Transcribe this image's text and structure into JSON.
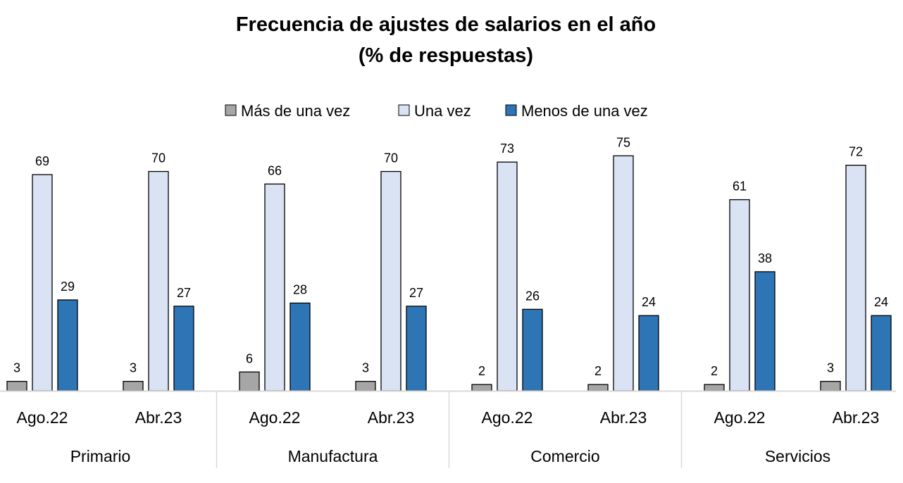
{
  "chart_data": {
    "type": "bar",
    "title": "Frecuencia de ajustes de salarios en el año",
    "subtitle": "(% de respuestas)",
    "groups": [
      "Primario",
      "Manufactura",
      "Comercio",
      "Servicios"
    ],
    "categories": [
      "Ago.22",
      "Abr.23",
      "Ago.22",
      "Abr.23",
      "Ago.22",
      "Abr.23",
      "Ago.22",
      "Abr.23"
    ],
    "series": [
      {
        "name": "Más de una vez",
        "color": "#a6a6a6",
        "values": [
          3,
          3,
          6,
          3,
          2,
          2,
          2,
          3
        ]
      },
      {
        "name": "Una vez",
        "color": "#dae3f3",
        "values": [
          69,
          70,
          66,
          70,
          73,
          75,
          61,
          72
        ]
      },
      {
        "name": "Menos de una vez",
        "color": "#2e75b6",
        "values": [
          29,
          27,
          28,
          27,
          26,
          24,
          38,
          24
        ]
      }
    ],
    "ylim": [
      0,
      80
    ],
    "legend": "top",
    "grid": false,
    "data_labels": true
  }
}
